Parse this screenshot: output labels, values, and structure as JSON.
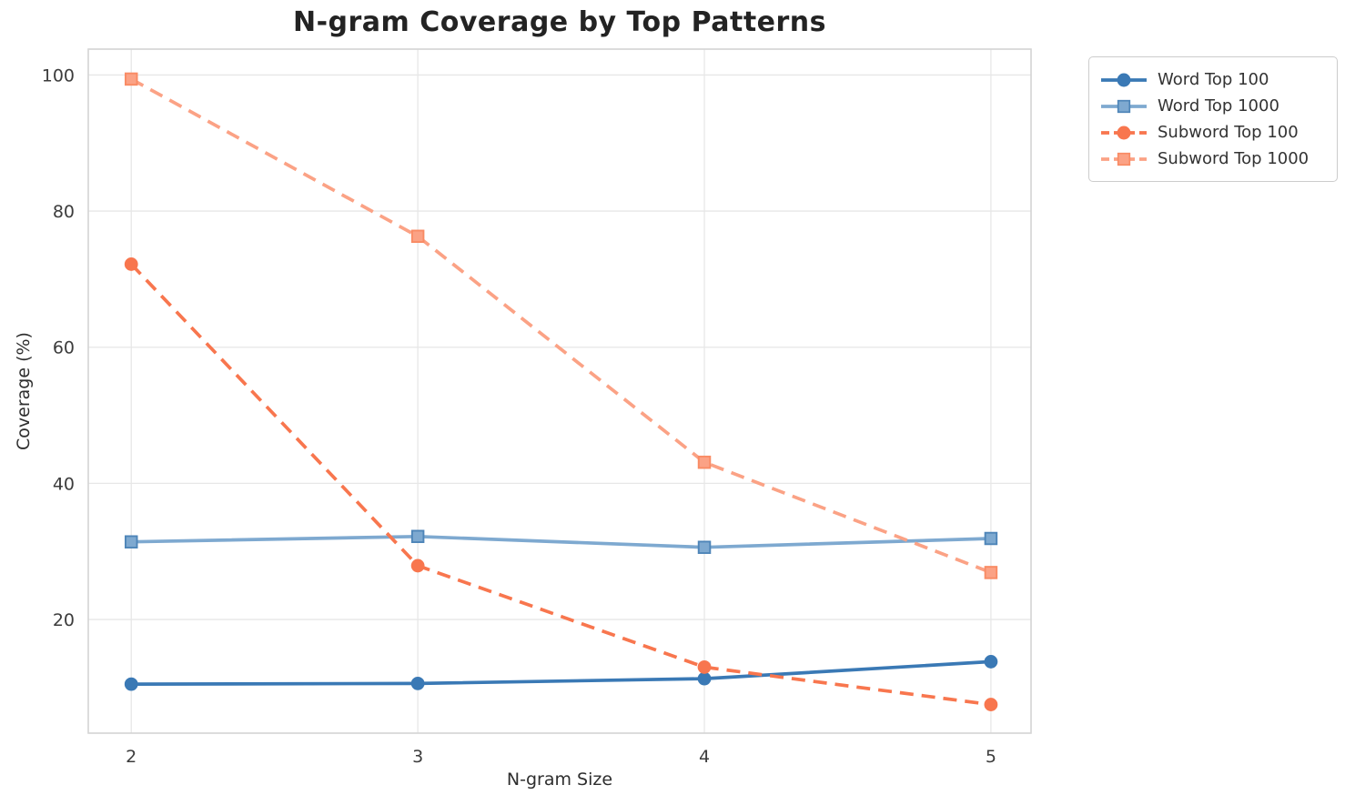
{
  "title": "N-gram Coverage by Top Patterns",
  "chart_data": {
    "type": "line",
    "title": "N-gram Coverage by Top Patterns",
    "xlabel": "N-gram Size",
    "ylabel": "Coverage (%)",
    "x": [
      2,
      3,
      4,
      5
    ],
    "xticks": [
      2,
      3,
      4,
      5
    ],
    "yticks": [
      20,
      40,
      60,
      80,
      100
    ],
    "xlim": [
      1.85,
      5.14
    ],
    "ylim": [
      3.3,
      103.8
    ],
    "grid": true,
    "legend_position": "outside-top-right",
    "series": [
      {
        "name": "Word Top 100",
        "values": [
          10.5,
          10.6,
          11.3,
          13.8
        ],
        "color": "#3a79b5",
        "edge_color": "#3a79b5",
        "marker": "circle",
        "line_style": "solid"
      },
      {
        "name": "Word Top 1000",
        "values": [
          31.4,
          32.2,
          30.6,
          31.9
        ],
        "color": "#7ea9d0",
        "edge_color": "#4e85b8",
        "marker": "square",
        "line_style": "solid"
      },
      {
        "name": "Subword Top 100",
        "values": [
          72.2,
          27.9,
          13.0,
          7.5
        ],
        "color": "#f8764e",
        "edge_color": "#f8764e",
        "marker": "circle",
        "line_style": "dashed"
      },
      {
        "name": "Subword Top 1000",
        "values": [
          99.4,
          76.3,
          43.1,
          26.9
        ],
        "color": "#fba285",
        "edge_color": "#f98b64",
        "marker": "square",
        "line_style": "dashed"
      }
    ]
  }
}
